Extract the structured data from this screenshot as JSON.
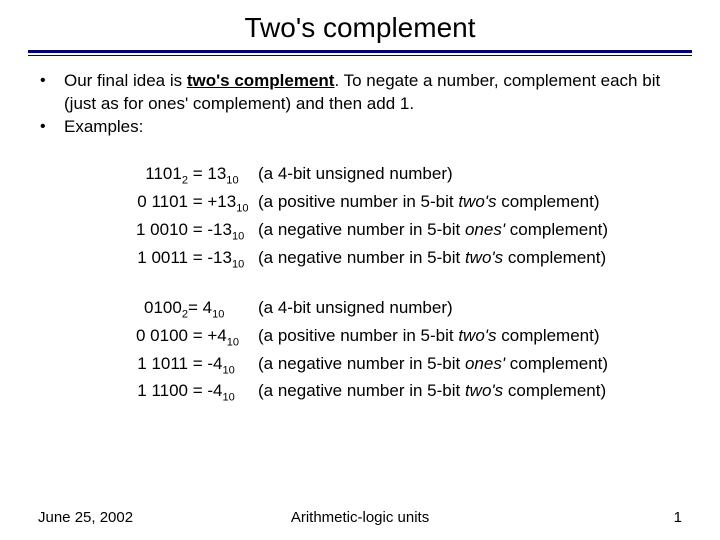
{
  "title": "Two's complement",
  "rule_colors": {
    "top": "#000080",
    "bottom": "#000080"
  },
  "bullets": {
    "b1_pre": "Our final idea is ",
    "b1_bold": "two's complement",
    "b1_post": ". To negate a number, complement each bit (just as for ones' complement) and then add 1.",
    "b2": "Examples:"
  },
  "block1": {
    "r1": {
      "bin": "1101",
      "sub": "2",
      "eq": " = 13",
      "eqsub": "10",
      "desc": "(a 4-bit unsigned number)"
    },
    "r2": {
      "bin": "0 1101",
      "sub": "",
      "eq": " = +13",
      "eqsub": "10",
      "desc_pre": "(a positive number in 5-bit ",
      "desc_ital": "two's",
      "desc_post": " complement)"
    },
    "r3": {
      "bin": "1 0010",
      "sub": "",
      "eq": " = -13",
      "eqsub": "10",
      "desc_pre": "(a negative number in 5-bit ",
      "desc_ital": "ones'",
      "desc_post": " complement)"
    },
    "r4": {
      "bin": "1 0011",
      "sub": "",
      "eq": " = -13",
      "eqsub": "10",
      "desc_pre": "(a negative number in 5-bit ",
      "desc_ital": "two's",
      "desc_post": " complement)"
    }
  },
  "block2": {
    "r1": {
      "bin": "0100",
      "sub": "2",
      "eq": "= 4",
      "eqsub": "10",
      "desc": "(a 4-bit unsigned number)"
    },
    "r2": {
      "bin": "0 0100",
      "sub": "",
      "eq": " = +4",
      "eqsub": "10",
      "desc_pre": "(a positive number in 5-bit ",
      "desc_ital": "two's",
      "desc_post": " complement)"
    },
    "r3": {
      "bin": "1 1011",
      "sub": "",
      "eq": " = -4",
      "eqsub": "10",
      "desc_pre": "(a negative number in 5-bit ",
      "desc_ital": "ones'",
      "desc_post": " complement)"
    },
    "r4": {
      "bin": "1 1100",
      "sub": "",
      "eq": " = -4",
      "eqsub": "10",
      "desc_pre": "(a negative number in 5-bit ",
      "desc_ital": "two's",
      "desc_post": " complement)"
    }
  },
  "footer": {
    "date": "June 25, 2002",
    "center": "Arithmetic-logic units",
    "page": "1"
  }
}
